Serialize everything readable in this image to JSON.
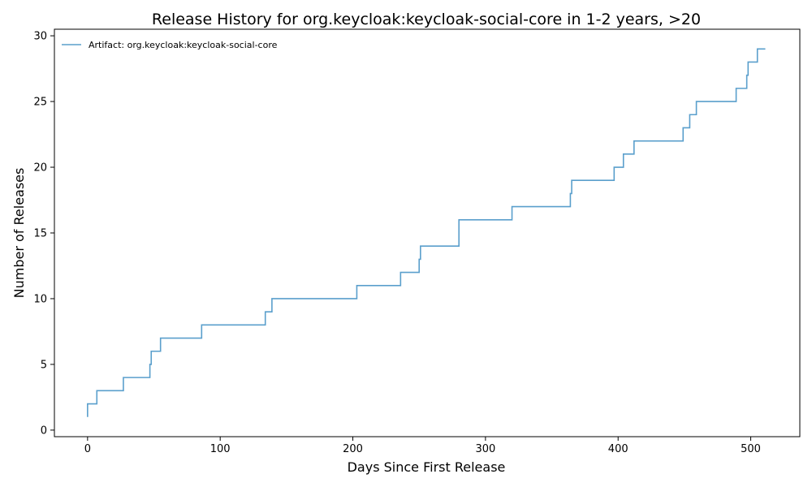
{
  "chart_data": {
    "type": "line",
    "drawstyle": "steps-post",
    "title": "Release History for org.keycloak:keycloak-social-core in 1-2 years, >20",
    "xlabel": "Days Since First Release",
    "ylabel": "Number of Releases",
    "xlim": [
      -25,
      537
    ],
    "ylim": [
      -0.5,
      30.5
    ],
    "xticks": [
      0,
      100,
      200,
      300,
      400,
      500
    ],
    "yticks": [
      0,
      5,
      10,
      15,
      20,
      25,
      30
    ],
    "grid": false,
    "legend_position": "upper-left",
    "series": [
      {
        "name": "Artifact: org.keycloak:keycloak-social-core",
        "color": "#5a9fcc",
        "x": [
          0,
          0,
          7,
          27,
          47,
          47,
          48,
          55,
          86,
          134,
          139,
          203,
          236,
          250,
          250,
          251,
          280,
          320,
          364,
          364,
          365,
          397,
          404,
          412,
          449,
          454,
          459,
          489,
          497,
          498,
          505,
          511
        ],
        "y": [
          1,
          2,
          3,
          4,
          5,
          5,
          6,
          7,
          8,
          9,
          10,
          11,
          12,
          13,
          13,
          14,
          16,
          17,
          18,
          18,
          19,
          20,
          21,
          22,
          23,
          24,
          25,
          26,
          27,
          28,
          29,
          29
        ]
      }
    ]
  }
}
